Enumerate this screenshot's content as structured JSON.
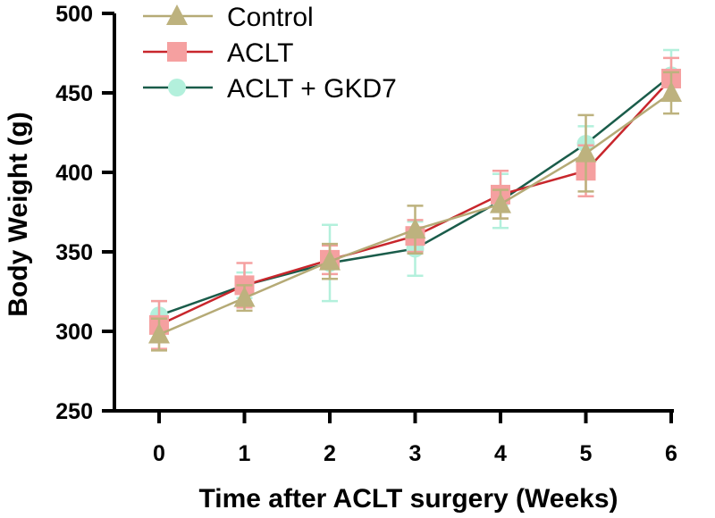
{
  "chart_data": {
    "type": "line",
    "xlabel": "Time after ACLT  surgery (Weeks)",
    "ylabel": "Body Weight (g)",
    "x": [
      0,
      1,
      2,
      3,
      4,
      5,
      6
    ],
    "x_tick_labels": [
      "0",
      "1",
      "2",
      "3",
      "4",
      "5",
      "6"
    ],
    "ylim": [
      250,
      500
    ],
    "y_ticks": [
      250,
      300,
      350,
      400,
      450,
      500
    ],
    "y_tick_labels": [
      "250",
      "300",
      "350",
      "400",
      "450",
      "500"
    ],
    "legend_position": "top-left",
    "series": [
      {
        "name": "ACLT + GKD7",
        "color": "#1a5c4a",
        "marker_color": "#b3f0dc",
        "marker": "circle",
        "values": [
          310,
          329,
          343,
          352,
          382,
          418,
          461
        ],
        "errors": [
          9,
          8,
          24,
          17,
          17,
          11,
          16
        ]
      },
      {
        "name": "ACLT",
        "color": "#c8262c",
        "marker_color": "#f5a0a0",
        "marker": "square",
        "values": [
          304,
          329,
          345,
          360,
          386,
          401,
          459
        ],
        "errors": [
          15,
          14,
          9,
          10,
          15,
          16,
          13
        ]
      },
      {
        "name": "Control",
        "color": "#b5aa76",
        "marker_color": "#bdb27e",
        "marker": "triangle",
        "values": [
          298,
          321,
          344,
          364,
          380,
          412,
          450
        ],
        "errors": [
          10,
          8,
          11,
          15,
          9,
          24,
          13
        ]
      }
    ],
    "legend_order": [
      "Control",
      "ACLT",
      "ACLT + GKD7"
    ]
  }
}
